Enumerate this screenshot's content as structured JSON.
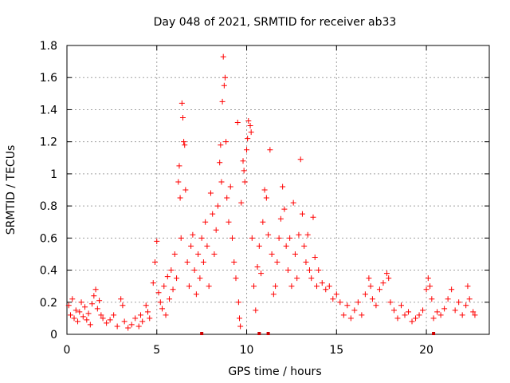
{
  "chart_data": {
    "type": "scatter",
    "title": "Day 048 of 2021, SRMTID for receiver ab33",
    "xlabel": "GPS time / hours",
    "ylabel": "SRMTID / TECUs",
    "xlim": [
      0,
      23.5
    ],
    "ylim": [
      0,
      1.8
    ],
    "xticks": [
      0,
      5,
      10,
      15,
      20
    ],
    "xtick_labels": [
      "0",
      "5",
      "10",
      "15",
      "20"
    ],
    "yticks": [
      0,
      0.2,
      0.4,
      0.6,
      0.8,
      1,
      1.2,
      1.4,
      1.6,
      1.8
    ],
    "ytick_labels": [
      "0",
      "0.2",
      "0.4",
      "0.6",
      "0.8",
      "1",
      "1.2",
      "1.4",
      "1.6",
      "1.8"
    ],
    "grid": true,
    "marker": "+",
    "color": "#ff0000",
    "series": [
      {
        "name": "SRMTID",
        "points": [
          [
            0.1,
            0.18
          ],
          [
            0.2,
            0.12
          ],
          [
            0.3,
            0.22
          ],
          [
            0.4,
            0.1
          ],
          [
            0.5,
            0.15
          ],
          [
            0.6,
            0.08
          ],
          [
            0.7,
            0.14
          ],
          [
            0.8,
            0.2
          ],
          [
            0.9,
            0.11
          ],
          [
            1.0,
            0.17
          ],
          [
            1.1,
            0.09
          ],
          [
            1.2,
            0.13
          ],
          [
            1.3,
            0.06
          ],
          [
            1.4,
            0.19
          ],
          [
            1.5,
            0.24
          ],
          [
            1.6,
            0.28
          ],
          [
            1.7,
            0.16
          ],
          [
            1.8,
            0.21
          ],
          [
            1.9,
            0.12
          ],
          [
            2.0,
            0.1
          ],
          [
            2.2,
            0.07
          ],
          [
            2.4,
            0.09
          ],
          [
            2.6,
            0.12
          ],
          [
            2.8,
            0.05
          ],
          [
            3.0,
            0.22
          ],
          [
            3.1,
            0.18
          ],
          [
            3.2,
            0.08
          ],
          [
            3.4,
            0.04
          ],
          [
            3.6,
            0.06
          ],
          [
            3.8,
            0.1
          ],
          [
            4.0,
            0.05
          ],
          [
            4.1,
            0.12
          ],
          [
            4.2,
            0.08
          ],
          [
            4.4,
            0.18
          ],
          [
            4.5,
            0.14
          ],
          [
            4.6,
            0.1
          ],
          [
            4.8,
            0.32
          ],
          [
            4.9,
            0.45
          ],
          [
            5.0,
            0.58
          ],
          [
            5.1,
            0.26
          ],
          [
            5.2,
            0.2
          ],
          [
            5.3,
            0.16
          ],
          [
            5.4,
            0.3
          ],
          [
            5.5,
            0.12
          ],
          [
            5.6,
            0.36
          ],
          [
            5.7,
            0.22
          ],
          [
            5.8,
            0.4
          ],
          [
            5.9,
            0.28
          ],
          [
            6.0,
            0.5
          ],
          [
            6.1,
            0.35
          ],
          [
            6.2,
            0.95
          ],
          [
            6.25,
            1.05
          ],
          [
            6.3,
            0.85
          ],
          [
            6.35,
            0.6
          ],
          [
            6.4,
            1.44
          ],
          [
            6.45,
            1.35
          ],
          [
            6.5,
            1.2
          ],
          [
            6.55,
            1.18
          ],
          [
            6.6,
            0.9
          ],
          [
            6.7,
            0.45
          ],
          [
            6.8,
            0.3
          ],
          [
            6.9,
            0.55
          ],
          [
            7.0,
            0.62
          ],
          [
            7.1,
            0.4
          ],
          [
            7.2,
            0.25
          ],
          [
            7.3,
            0.5
          ],
          [
            7.4,
            0.35
          ],
          [
            7.5,
            0.6
          ],
          [
            7.6,
            0.45
          ],
          [
            7.7,
            0.7
          ],
          [
            7.8,
            0.55
          ],
          [
            7.9,
            0.3
          ],
          [
            8.0,
            0.88
          ],
          [
            8.1,
            0.75
          ],
          [
            8.2,
            0.5
          ],
          [
            8.3,
            0.65
          ],
          [
            8.4,
            0.8
          ],
          [
            8.5,
            1.07
          ],
          [
            8.55,
            1.18
          ],
          [
            8.6,
            0.95
          ],
          [
            8.65,
            1.45
          ],
          [
            8.7,
            1.73
          ],
          [
            8.75,
            1.55
          ],
          [
            8.8,
            1.6
          ],
          [
            8.85,
            1.2
          ],
          [
            8.9,
            0.85
          ],
          [
            9.0,
            0.7
          ],
          [
            9.1,
            0.92
          ],
          [
            9.2,
            0.6
          ],
          [
            9.3,
            0.45
          ],
          [
            9.4,
            0.35
          ],
          [
            9.5,
            1.32
          ],
          [
            9.55,
            0.2
          ],
          [
            9.6,
            0.1
          ],
          [
            9.65,
            0.05
          ],
          [
            9.7,
            0.82
          ],
          [
            9.8,
            1.08
          ],
          [
            9.85,
            1.02
          ],
          [
            9.9,
            0.95
          ],
          [
            10.0,
            1.15
          ],
          [
            10.05,
            1.22
          ],
          [
            10.1,
            1.33
          ],
          [
            10.2,
            1.3
          ],
          [
            10.25,
            1.26
          ],
          [
            10.3,
            0.6
          ],
          [
            10.4,
            0.3
          ],
          [
            10.5,
            0.15
          ],
          [
            10.6,
            0.42
          ],
          [
            10.7,
            0.55
          ],
          [
            10.8,
            0.38
          ],
          [
            10.9,
            0.7
          ],
          [
            11.0,
            0.9
          ],
          [
            11.1,
            0.85
          ],
          [
            11.2,
            0.62
          ],
          [
            11.3,
            1.15
          ],
          [
            11.4,
            0.5
          ],
          [
            11.5,
            0.25
          ],
          [
            11.6,
            0.3
          ],
          [
            11.7,
            0.45
          ],
          [
            11.8,
            0.6
          ],
          [
            11.9,
            0.72
          ],
          [
            12.0,
            0.92
          ],
          [
            12.1,
            0.78
          ],
          [
            12.2,
            0.55
          ],
          [
            12.3,
            0.4
          ],
          [
            12.4,
            0.6
          ],
          [
            12.5,
            0.3
          ],
          [
            12.6,
            0.82
          ],
          [
            12.7,
            0.5
          ],
          [
            12.8,
            0.35
          ],
          [
            12.9,
            0.62
          ],
          [
            13.0,
            1.09
          ],
          [
            13.1,
            0.75
          ],
          [
            13.2,
            0.55
          ],
          [
            13.3,
            0.45
          ],
          [
            13.4,
            0.62
          ],
          [
            13.5,
            0.4
          ],
          [
            13.6,
            0.35
          ],
          [
            13.7,
            0.73
          ],
          [
            13.8,
            0.48
          ],
          [
            13.9,
            0.3
          ],
          [
            14.0,
            0.4
          ],
          [
            14.2,
            0.32
          ],
          [
            14.4,
            0.28
          ],
          [
            14.6,
            0.3
          ],
          [
            14.8,
            0.22
          ],
          [
            15.0,
            0.25
          ],
          [
            15.2,
            0.2
          ],
          [
            15.4,
            0.12
          ],
          [
            15.6,
            0.18
          ],
          [
            15.8,
            0.1
          ],
          [
            16.0,
            0.15
          ],
          [
            16.2,
            0.2
          ],
          [
            16.4,
            0.12
          ],
          [
            16.6,
            0.25
          ],
          [
            16.8,
            0.35
          ],
          [
            16.9,
            0.3
          ],
          [
            17.0,
            0.22
          ],
          [
            17.2,
            0.18
          ],
          [
            17.4,
            0.28
          ],
          [
            17.6,
            0.32
          ],
          [
            17.8,
            0.38
          ],
          [
            17.9,
            0.35
          ],
          [
            18.0,
            0.2
          ],
          [
            18.2,
            0.15
          ],
          [
            18.4,
            0.1
          ],
          [
            18.6,
            0.18
          ],
          [
            18.8,
            0.12
          ],
          [
            19.0,
            0.14
          ],
          [
            19.2,
            0.08
          ],
          [
            19.4,
            0.1
          ],
          [
            19.6,
            0.12
          ],
          [
            19.8,
            0.15
          ],
          [
            20.0,
            0.28
          ],
          [
            20.1,
            0.35
          ],
          [
            20.2,
            0.3
          ],
          [
            20.3,
            0.22
          ],
          [
            20.4,
            0.1
          ],
          [
            20.6,
            0.14
          ],
          [
            20.8,
            0.12
          ],
          [
            21.0,
            0.16
          ],
          [
            21.2,
            0.22
          ],
          [
            21.4,
            0.28
          ],
          [
            21.6,
            0.15
          ],
          [
            21.8,
            0.2
          ],
          [
            22.0,
            0.12
          ],
          [
            22.2,
            0.18
          ],
          [
            22.3,
            0.3
          ],
          [
            22.4,
            0.22
          ],
          [
            22.6,
            0.14
          ],
          [
            22.7,
            0.12
          ]
        ]
      }
    ],
    "zero_markers": [
      7.5,
      10.7,
      11.2,
      20.4
    ]
  }
}
